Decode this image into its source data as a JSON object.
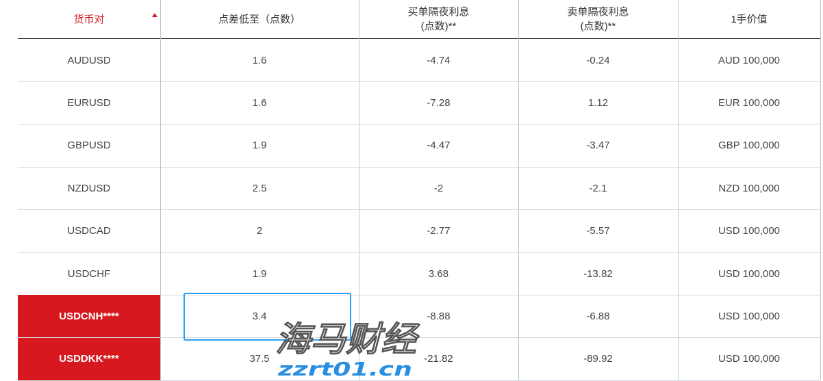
{
  "header": {
    "pair": "货币对",
    "spread": "点差低至（点数）",
    "buy_swap": "买单隔夜利息",
    "buy_swap_unit": "(点数)**",
    "sell_swap": "卖单隔夜利息",
    "sell_swap_unit": "(点数)**",
    "lot_value": "1手价值"
  },
  "rows": [
    {
      "pair": "AUDUSD",
      "spread": "1.6",
      "buy": "-4.74",
      "sell": "-0.24",
      "lot": "AUD 100,000",
      "highlight": false
    },
    {
      "pair": "EURUSD",
      "spread": "1.6",
      "buy": "-7.28",
      "sell": "1.12",
      "lot": "EUR 100,000",
      "highlight": false
    },
    {
      "pair": "GBPUSD",
      "spread": "1.9",
      "buy": "-4.47",
      "sell": "-3.47",
      "lot": "GBP 100,000",
      "highlight": false
    },
    {
      "pair": "NZDUSD",
      "spread": "2.5",
      "buy": "-2",
      "sell": "-2.1",
      "lot": "NZD 100,000",
      "highlight": false
    },
    {
      "pair": "USDCAD",
      "spread": "2",
      "buy": "-2.77",
      "sell": "-5.57",
      "lot": "USD 100,000",
      "highlight": false
    },
    {
      "pair": "USDCHF",
      "spread": "1.9",
      "buy": "3.68",
      "sell": "-13.82",
      "lot": "USD 100,000",
      "highlight": false
    },
    {
      "pair": "USDCNH****",
      "spread": "3.4",
      "buy": "-8.88",
      "sell": "-6.88",
      "lot": "USD 100,000",
      "highlight": true
    },
    {
      "pair": "USDDKK****",
      "spread": "37.5",
      "buy": "-21.82",
      "sell": "-89.92",
      "lot": "USD 100,000",
      "highlight": true
    }
  ],
  "watermark": {
    "title": "海马财经",
    "url": "zzrt01.cn"
  },
  "colors": {
    "accent": "#d7191f",
    "selection": "#2a9df4"
  }
}
